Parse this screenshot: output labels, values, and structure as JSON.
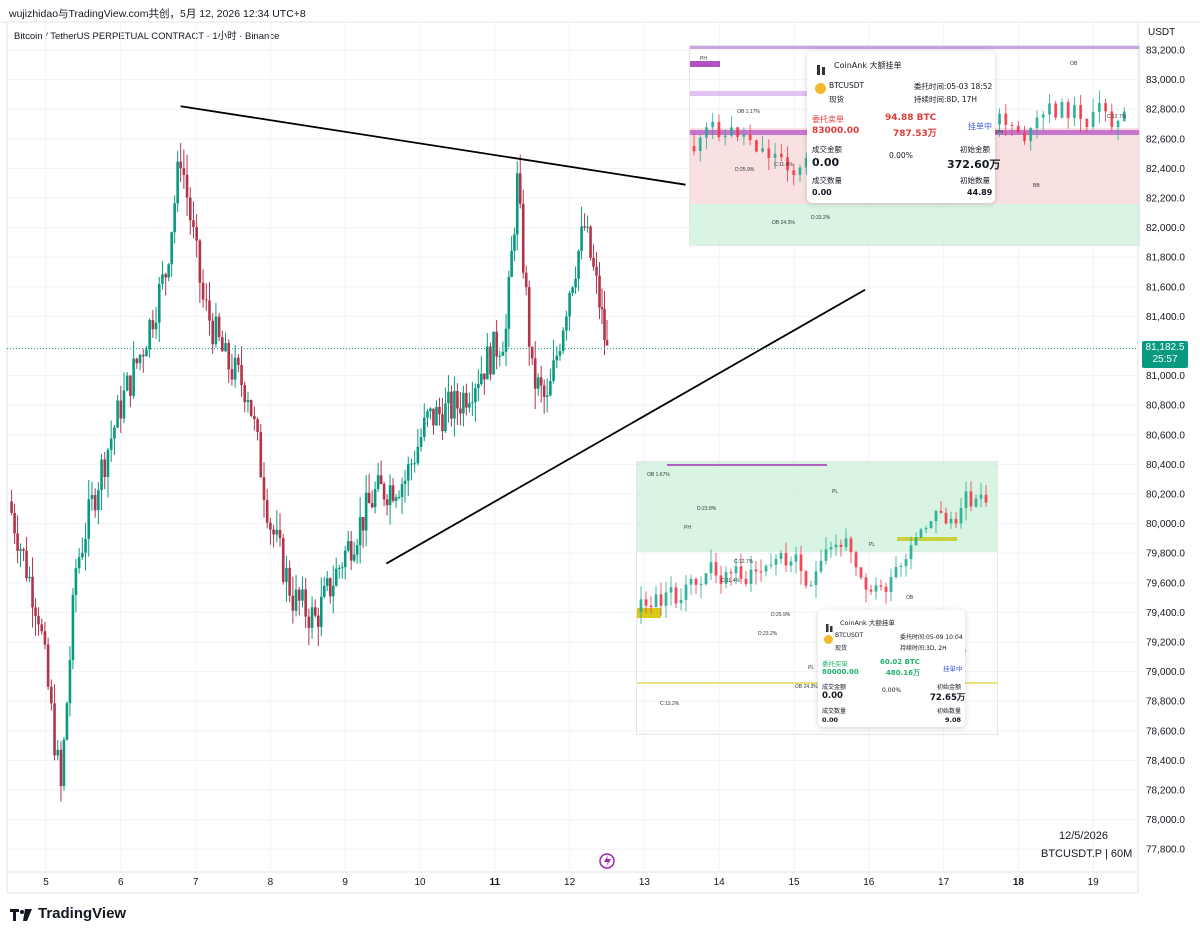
{
  "header": {
    "watermark": "wujizhidao与TradingView.com共创，5月 12, 2026 12:34 UTC+8",
    "symbol": "Bitcoin / TetherUS PERPETUAL CONTRACT · 1小时 · Binance"
  },
  "axis": {
    "unit": "USDT",
    "y_ticks": [
      "83,200.0",
      "83,000.0",
      "82,800.0",
      "82,600.0",
      "82,400.0",
      "82,200.0",
      "82,000.0",
      "81,800.0",
      "81,600.0",
      "81,400.0",
      "81,200.0",
      "81,000.0",
      "80,800.0",
      "80,600.0",
      "80,400.0",
      "80,200.0",
      "80,000.0",
      "79,800.0",
      "79,600.0",
      "79,400.0",
      "79,200.0",
      "79,000.0",
      "78,800.0",
      "78,600.0",
      "78,400.0",
      "78,200.0",
      "78,000.0",
      "77,800.0"
    ],
    "x_ticks": [
      "5",
      "6",
      "7",
      "8",
      "9",
      "10",
      "11",
      "12",
      "13",
      "14",
      "15",
      "16",
      "17",
      "18",
      "19"
    ],
    "x_bold": [
      "11",
      "18"
    ]
  },
  "price_badge": {
    "price": "81,182.5",
    "countdown": "25:57",
    "color": "#089981"
  },
  "stamp": {
    "date": "12/5/2026",
    "ticker": "BTCUSDT.P | 60M"
  },
  "brand": {
    "name": "TradingView"
  },
  "chart_data": {
    "type": "candlestick",
    "interval": "1h",
    "ylim": [
      77700,
      83300
    ],
    "x_range_days": [
      4.5,
      19.6
    ],
    "last_price": 81182.5,
    "trendlines": [
      {
        "from": [
          6.8,
          82820
        ],
        "to": [
          13.55,
          82290
        ]
      },
      {
        "from": [
          9.55,
          79730
        ],
        "to": [
          15.95,
          81580
        ]
      }
    ],
    "daily_path": [
      [
        4.5,
        80150
      ],
      [
        4.9,
        79400
      ],
      [
        5.2,
        78200
      ],
      [
        5.4,
        79700
      ],
      [
        5.7,
        80300
      ],
      [
        6.0,
        80800
      ],
      [
        6.3,
        81200
      ],
      [
        6.6,
        81700
      ],
      [
        6.8,
        82500
      ],
      [
        7.1,
        81500
      ],
      [
        7.4,
        81100
      ],
      [
        7.7,
        80900
      ],
      [
        8.0,
        80000
      ],
      [
        8.3,
        79500
      ],
      [
        8.6,
        79350
      ],
      [
        9.0,
        79800
      ],
      [
        9.4,
        80200
      ],
      [
        9.8,
        80300
      ],
      [
        10.1,
        80700
      ],
      [
        10.5,
        80800
      ],
      [
        10.9,
        81100
      ],
      [
        11.15,
        81300
      ],
      [
        11.3,
        82300
      ],
      [
        11.5,
        81000
      ],
      [
        11.7,
        80800
      ],
      [
        12.0,
        81600
      ],
      [
        12.2,
        82000
      ],
      [
        12.4,
        81500
      ],
      [
        12.5,
        81150
      ]
    ]
  },
  "cards": {
    "sell": {
      "app": "CoinAnk 大额挂单",
      "pair": "BTCUSDT",
      "market": "现货",
      "time": "委托时间:05-03 18:52",
      "duration": "持续时间:8D, 17H",
      "side": "委托卖单",
      "qty": "94.88 BTC",
      "price": "83000.00",
      "amount": "787.53万",
      "status": "挂单中",
      "filled_label": "成交金额",
      "filled_value": "0.00",
      "pct": "0.00%",
      "init_amount_label": "初始金额",
      "init_amount": "372.60万",
      "filled_qty_label": "成交数量",
      "filled_qty": "0.00",
      "init_qty_label": "初始数量",
      "init_qty": "44.89"
    },
    "buy": {
      "app": "CoinAnk 大额挂单",
      "pair": "BTCUSDT",
      "market": "现货",
      "time": "委托时间:05-09 10:04",
      "duration": "持续时间:3D, 2H",
      "side": "委托买单",
      "qty": "60.02 BTC",
      "price": "80000.00",
      "amount": "480.16万",
      "status": "挂单中",
      "filled_label": "成交金额",
      "filled_value": "0.00",
      "pct": "0.00%",
      "init_amount_label": "初始金额",
      "init_amount": "72.65万",
      "filled_qty_label": "成交数量",
      "filled_qty": "0.00",
      "init_qty_label": "初始数量",
      "init_qty": "9.08"
    }
  },
  "inset_labels": {
    "top": [
      "PH",
      "OB 1.17%",
      "C:11.4%",
      "D:33.2%",
      "PH",
      "BB",
      "C:13.2%",
      "D:23.8%",
      "PH",
      "BB",
      "OB",
      "C:12.7%",
      "D:25.9%",
      "OB 24.3%"
    ],
    "bottom": [
      "OB 1.67%",
      "PH",
      "C:11.4%",
      "D:23.2%",
      "OB 24.3%",
      "PL",
      "PL",
      "OB",
      "OB 25.6%",
      "C:13.2%",
      "D:23.8%",
      "C:12.7%",
      "D:25.9%",
      "PL"
    ]
  },
  "colors": {
    "up": "#089981",
    "down": "#b2344a",
    "grid": "#f0f3fa",
    "inset_up": "#22ab94",
    "inset_down": "#f23645"
  }
}
